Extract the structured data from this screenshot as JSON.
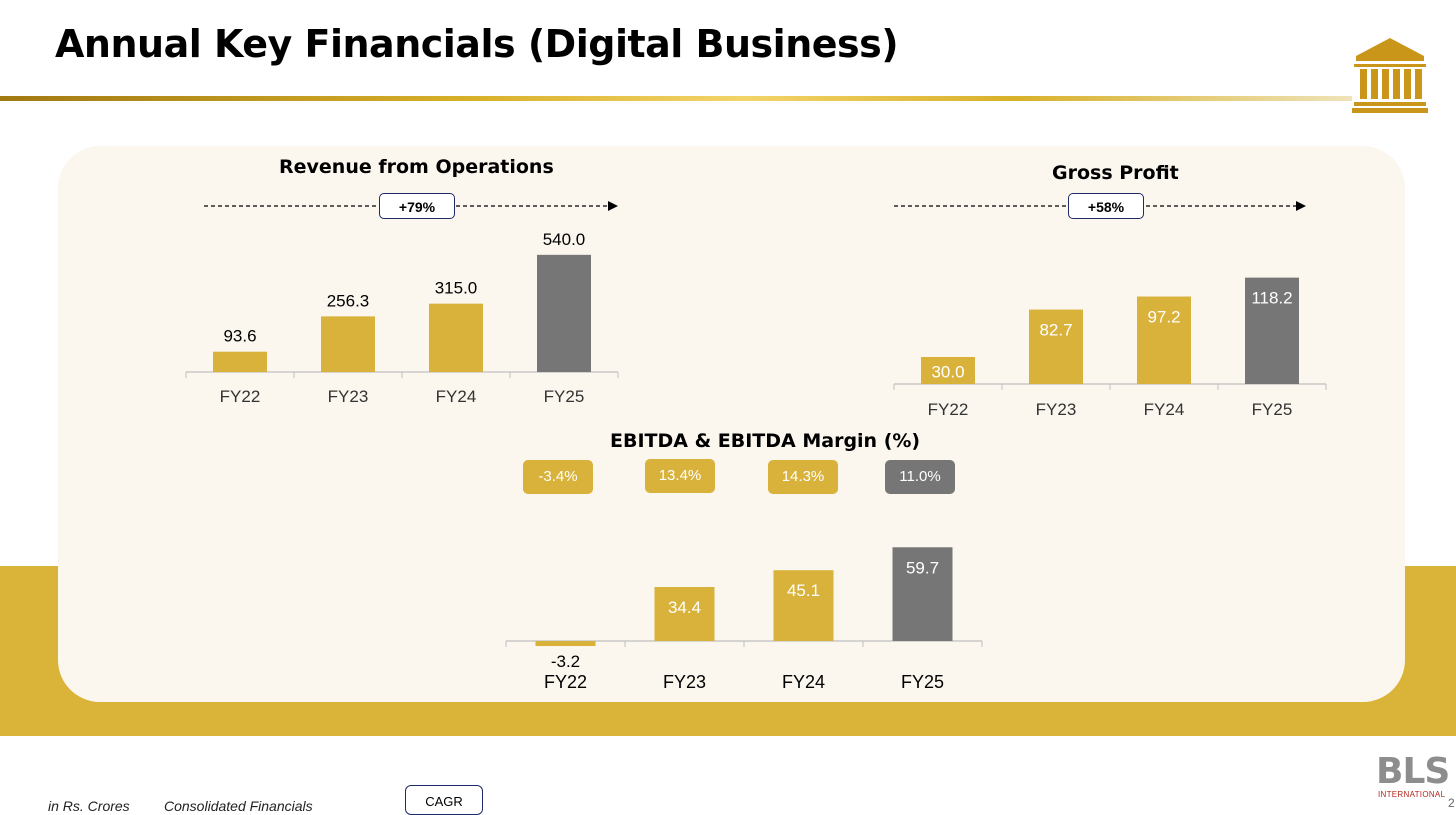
{
  "header": {
    "title": "Annual Key Financials (Digital Business)"
  },
  "colors": {
    "gold": "#d9b23b",
    "grey": "#767676",
    "band": "#dab339",
    "navy": "#1f2a6b"
  },
  "chart_data": [
    {
      "id": "revenue",
      "type": "bar",
      "title": "Revenue from Operations",
      "cagr": "+79%",
      "categories": [
        "FY22",
        "FY23",
        "FY24",
        "FY25"
      ],
      "values": [
        93.6,
        256.3,
        315.0,
        540.0
      ],
      "labels": [
        "93.6",
        "256.3",
        "315.0",
        "540.0"
      ],
      "label_position": "above",
      "highlight_last": true
    },
    {
      "id": "gross_profit",
      "type": "bar",
      "title": "Gross Profit",
      "cagr": "+58%",
      "categories": [
        "FY22",
        "FY23",
        "FY24",
        "FY25"
      ],
      "values": [
        30.0,
        82.7,
        97.2,
        118.2
      ],
      "labels": [
        "30.0",
        "82.7",
        "97.2",
        "118.2"
      ],
      "label_position": "inside",
      "highlight_last": true
    },
    {
      "id": "ebitda",
      "type": "bar",
      "title": "EBITDA & EBITDA Margin (%)",
      "categories": [
        "FY22",
        "FY23",
        "FY24",
        "FY25"
      ],
      "values": [
        -3.2,
        34.4,
        45.1,
        59.7
      ],
      "labels": [
        "-3.2",
        "34.4",
        "45.1",
        "59.7"
      ],
      "margins": [
        "-3.4%",
        "13.4%",
        "14.3%",
        "11.0%"
      ],
      "label_position": "inside",
      "highlight_last": true
    }
  ],
  "footer": {
    "unit_note": "in Rs. Crores",
    "basis_note": "Consolidated Financials",
    "cagr_label": "CAGR",
    "brand": "BLS",
    "brand_sub": "INTERNATIONAL",
    "page": "2"
  }
}
